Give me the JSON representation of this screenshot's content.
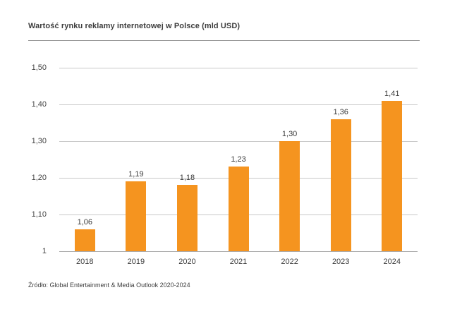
{
  "header": {
    "title": "Wartość rynku reklamy internetowej w Polsce (mld USD)"
  },
  "footer": {
    "source": "Źródło: Global Entertainment & Media Outlook 2020-2024"
  },
  "colors": {
    "bar_orange": "#f5941f",
    "gridline_gray": "#c8c8c8",
    "baseline_gray": "#ababab",
    "text_dark": "#3d3d3d",
    "divider_gray": "#8f8f8f",
    "background": "#ffffff"
  },
  "chart_data": {
    "type": "bar",
    "title": "Wartość rynku reklamy internetowej w Polsce (mld USD)",
    "categories": [
      "2018",
      "2019",
      "2020",
      "2021",
      "2022",
      "2023",
      "2024"
    ],
    "values": [
      1.06,
      1.19,
      1.18,
      1.23,
      1.3,
      1.36,
      1.41
    ],
    "value_labels": [
      "1,06",
      "1,19",
      "1,18",
      "1,23",
      "1,30",
      "1,36",
      "1,41"
    ],
    "xlabel": "",
    "ylabel": "",
    "ylim": [
      1,
      1.5
    ],
    "ytick_labels": [
      "1,50",
      "1,40",
      "1,30",
      "1,20",
      "1,10",
      "1"
    ],
    "grid": true,
    "legend": false,
    "bar_color": "#f5941f",
    "source": "Źródło: Global Entertainment & Media Outlook 2020-2024"
  }
}
